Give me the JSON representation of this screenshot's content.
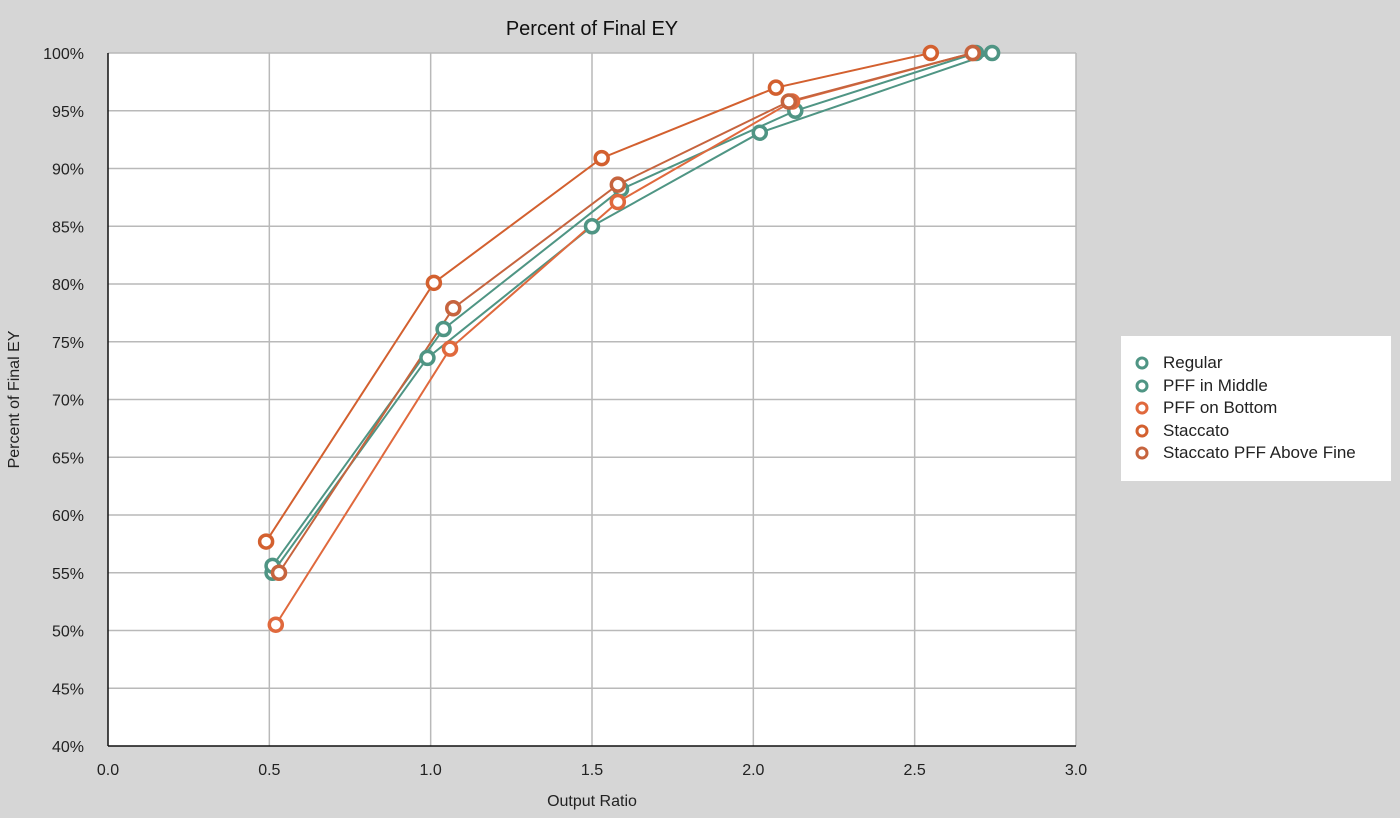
{
  "chart_data": {
    "type": "scatter",
    "title": "Percent of Final EY",
    "xlabel": "Output Ratio",
    "ylabel": "Percent of Final EY",
    "xlim": [
      0,
      3
    ],
    "ylim": [
      40,
      100
    ],
    "x_ticks": [
      "0.0",
      "0.5",
      "1.0",
      "1.5",
      "2.0",
      "2.5",
      "3.0"
    ],
    "y_ticks": [
      "40%",
      "45%",
      "50%",
      "55%",
      "60%",
      "65%",
      "70%",
      "75%",
      "80%",
      "85%",
      "90%",
      "95%",
      "100%"
    ],
    "grid": true,
    "legend_position": "right",
    "series": [
      {
        "name": "Regular",
        "color": "#4f9584",
        "points": [
          [
            0.51,
            55.0
          ],
          [
            0.99,
            73.6
          ],
          [
            1.5,
            85.0
          ],
          [
            2.02,
            93.1
          ],
          [
            2.74,
            100.0
          ]
        ]
      },
      {
        "name": "PFF in Middle",
        "color": "#4f9584",
        "points": [
          [
            0.51,
            55.6
          ],
          [
            1.04,
            76.1
          ],
          [
            1.59,
            88.2
          ],
          [
            2.13,
            95.0
          ],
          [
            2.69,
            100.0
          ]
        ]
      },
      {
        "name": "PFF on Bottom",
        "color": "#e0693d",
        "points": [
          [
            0.52,
            50.5
          ],
          [
            1.06,
            74.4
          ],
          [
            1.58,
            87.1
          ],
          [
            2.12,
            95.8
          ],
          [
            2.68,
            100.0
          ]
        ]
      },
      {
        "name": "Staccato",
        "color": "#d3602f",
        "points": [
          [
            0.49,
            57.7
          ],
          [
            1.01,
            80.1
          ],
          [
            1.53,
            90.9
          ],
          [
            2.07,
            97.0
          ],
          [
            2.55,
            100.0
          ]
        ]
      },
      {
        "name": "Staccato PFF Above Fine",
        "color": "#c6643e",
        "points": [
          [
            0.53,
            55.0
          ],
          [
            1.07,
            77.9
          ],
          [
            1.58,
            88.6
          ],
          [
            2.11,
            95.8
          ],
          [
            2.68,
            100.0
          ]
        ]
      }
    ]
  }
}
